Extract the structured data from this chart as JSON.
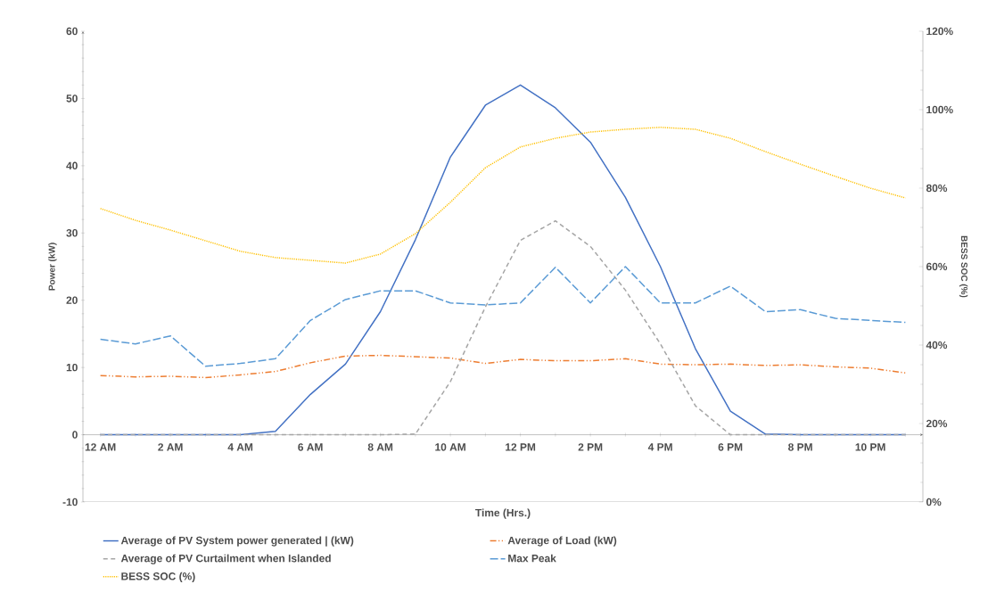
{
  "chart_data": {
    "type": "line",
    "xlabel": "Time (Hrs.)",
    "ylabel": "Power (kW)",
    "y2label": "BESS SOC (%)",
    "categories": [
      "12 AM",
      null,
      "2 AM",
      null,
      "4 AM",
      null,
      "6 AM",
      null,
      "8 AM",
      null,
      "10 AM",
      null,
      "12 PM",
      null,
      "2 PM",
      null,
      "4 PM",
      null,
      "6 PM",
      null,
      "8 PM",
      null,
      "10 PM",
      null
    ],
    "series": [
      {
        "name": "Average of PV System power generated | (kW)",
        "color": "#4472c4",
        "line_style": "solid",
        "values": [
          0,
          0,
          0,
          0,
          0,
          0.5,
          6,
          10.5,
          18.3,
          29,
          41.3,
          49,
          52,
          48.6,
          43.5,
          35.3,
          25,
          12.8,
          3.5,
          0.1,
          0,
          0,
          0,
          0
        ]
      },
      {
        "name": "Average of Load (kW)",
        "color": "#ed7d31",
        "line_style": "dash dot dot",
        "values": [
          8.8,
          8.6,
          8.7,
          8.5,
          8.9,
          9.4,
          10.7,
          11.7,
          11.8,
          11.6,
          11.4,
          10.6,
          11.2,
          11.0,
          11.0,
          11.3,
          10.5,
          10.4,
          10.5,
          10.3,
          10.4,
          10.1,
          9.9,
          9.2
        ]
      },
      {
        "name": "Average of PV Curtailment when Islanded",
        "color": "#a5a5a5",
        "line_style": "dashed",
        "values": [
          0,
          0,
          0,
          0,
          0,
          0,
          0,
          0,
          0,
          0.1,
          7.9,
          19,
          28.9,
          31.8,
          28,
          21.5,
          13.5,
          4.3,
          0,
          0,
          0,
          0,
          0,
          0
        ]
      },
      {
        "name": "Max Peak",
        "color": "#5b9bd5",
        "line_style": "long dashed",
        "values": [
          14.2,
          13.5,
          14.7,
          10.2,
          10.6,
          11.3,
          17,
          20.1,
          21.4,
          21.4,
          19.6,
          19.3,
          19.6,
          24.9,
          19.6,
          25,
          19.6,
          19.6,
          22.1,
          18.3,
          18.6,
          17.3,
          17,
          16.7
        ]
      },
      {
        "name": "BESS SOC (%)",
        "color": "#ffc000",
        "line_style": "dotted",
        "axis": "y2",
        "values": [
          74.8,
          71.8,
          69.3,
          66.6,
          63.9,
          62.3,
          61.6,
          60.9,
          63.2,
          68.4,
          76.4,
          85.2,
          90.5,
          92.7,
          94.3,
          95,
          95.5,
          95,
          92.7,
          89.3,
          86.1,
          83,
          80,
          77.5
        ]
      }
    ],
    "ylim": [
      -10,
      60
    ],
    "yticks": [
      -10,
      0,
      10,
      20,
      30,
      40,
      50,
      60
    ],
    "y2lim": [
      0,
      120
    ],
    "y2ticks": [
      {
        "value": 0,
        "label": "0%"
      },
      {
        "value": 20,
        "label": "20%"
      },
      {
        "value": 40,
        "label": "40%"
      },
      {
        "value": 60,
        "label": "60%"
      },
      {
        "value": 80,
        "label": "80%"
      },
      {
        "value": 100,
        "label": "100%"
      },
      {
        "value": 120,
        "label": "120%"
      }
    ],
    "grid": false,
    "legend": "bottom",
    "marker": "none"
  }
}
